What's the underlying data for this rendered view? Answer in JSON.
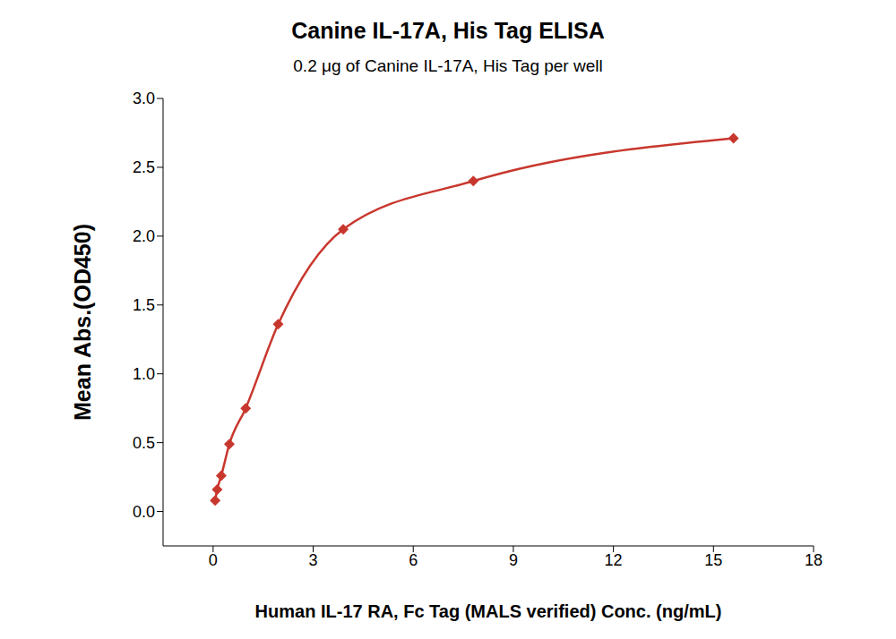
{
  "chart_data": {
    "type": "line",
    "title": "Canine IL-17A, His Tag ELISA",
    "subtitle": "0.2 μg of Canine IL-17A, His Tag per well",
    "x_label": "Human IL-17 RA, Fc Tag (MALS verified) Conc. (ng/mL)",
    "y_label": "Mean Abs.(OD450)",
    "x": [
      0.061,
      0.122,
      0.244,
      0.488,
      0.977,
      1.95,
      3.9,
      7.8,
      15.6
    ],
    "values": [
      0.08,
      0.16,
      0.26,
      0.49,
      0.75,
      1.36,
      2.05,
      2.4,
      2.71
    ],
    "color": "#c8372d",
    "marker": "diamond",
    "line_style": "solid",
    "xlim": [
      -1.5,
      18
    ],
    "xticks": [
      0,
      3,
      6,
      9,
      12,
      15,
      18
    ],
    "ylim": [
      -0.25,
      3.0
    ],
    "yticks": [
      {
        "value": 0,
        "label": "0.0"
      },
      0.5,
      {
        "value": 1,
        "label": "1.0"
      },
      1.5,
      {
        "value": 2,
        "label": "2.0"
      },
      2.5,
      {
        "value": 3,
        "label": "3.0"
      }
    ],
    "grid": false
  }
}
